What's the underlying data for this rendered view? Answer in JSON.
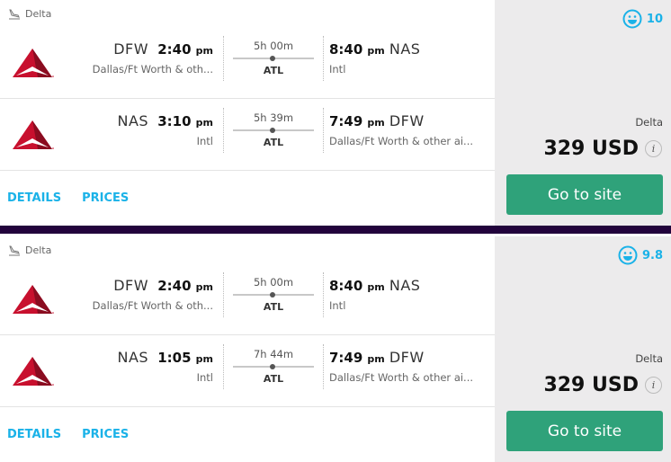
{
  "colors": {
    "accent": "#1ab2e8",
    "go_button": "#2fa27a",
    "separator": "#22033c",
    "panel": "#ecebec"
  },
  "results": [
    {
      "airline": "Delta",
      "score": "10",
      "provider": "Delta",
      "price": "329 USD",
      "info": "i",
      "go": "Go to site",
      "details": "DETAILS",
      "prices": "PRICES",
      "legs": [
        {
          "dep_code": "DFW",
          "dep_time": "2:40",
          "dep_ampm": "pm",
          "dep_city": "Dallas/Ft Worth & oth...",
          "duration": "5h 00m",
          "stop": "ATL",
          "arr_time": "8:40",
          "arr_ampm": "pm",
          "arr_code": "NAS",
          "arr_city": "Intl"
        },
        {
          "dep_code": "NAS",
          "dep_time": "3:10",
          "dep_ampm": "pm",
          "dep_city": "Intl",
          "duration": "5h 39m",
          "stop": "ATL",
          "arr_time": "7:49",
          "arr_ampm": "pm",
          "arr_code": "DFW",
          "arr_city": "Dallas/Ft Worth & other ai..."
        }
      ]
    },
    {
      "airline": "Delta",
      "score": "9.8",
      "provider": "Delta",
      "price": "329 USD",
      "info": "i",
      "go": "Go to site",
      "details": "DETAILS",
      "prices": "PRICES",
      "legs": [
        {
          "dep_code": "DFW",
          "dep_time": "2:40",
          "dep_ampm": "pm",
          "dep_city": "Dallas/Ft Worth & oth...",
          "duration": "5h 00m",
          "stop": "ATL",
          "arr_time": "8:40",
          "arr_ampm": "pm",
          "arr_code": "NAS",
          "arr_city": "Intl"
        },
        {
          "dep_code": "NAS",
          "dep_time": "1:05",
          "dep_ampm": "pm",
          "dep_city": "Intl",
          "duration": "7h 44m",
          "stop": "ATL",
          "arr_time": "7:49",
          "arr_ampm": "pm",
          "arr_code": "DFW",
          "arr_city": "Dallas/Ft Worth & other ai..."
        }
      ]
    }
  ]
}
